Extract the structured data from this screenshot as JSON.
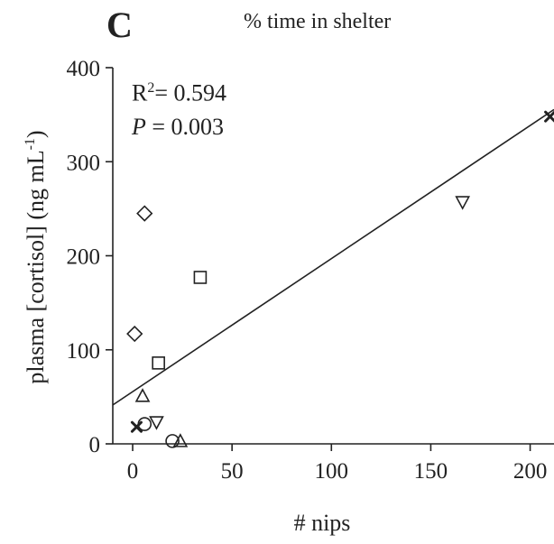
{
  "panel_label": "C",
  "chart_data": {
    "type": "scatter",
    "title": "% time in shelter",
    "xlabel": "# nips",
    "ylabel": "plasma [cortisol] (ng mL",
    "ylabel_superscript": "-1",
    "ylabel_tail": ")",
    "xlim": [
      -10,
      212
    ],
    "ylim": [
      0,
      400
    ],
    "xticks": [
      0,
      50,
      100,
      150,
      200
    ],
    "yticks": [
      0,
      100,
      200,
      300,
      400
    ],
    "grid": false,
    "stats": {
      "r2_prefix": "R",
      "r2_sup": "2",
      "r2_value": "= 0.594",
      "p_label": "P",
      "p_value": " = 0.003"
    },
    "regression": {
      "slope": 1.415,
      "intercept": 55.5
    },
    "points": [
      {
        "marker": "x",
        "x": 210,
        "y": 348
      },
      {
        "marker": "x",
        "x": 2,
        "y": 18
      },
      {
        "marker": "triangle-down",
        "x": 166,
        "y": 257
      },
      {
        "marker": "triangle-down",
        "x": 12,
        "y": 23
      },
      {
        "marker": "diamond",
        "x": 6,
        "y": 245
      },
      {
        "marker": "diamond",
        "x": 1,
        "y": 117
      },
      {
        "marker": "square",
        "x": 34,
        "y": 177
      },
      {
        "marker": "square",
        "x": 13,
        "y": 86
      },
      {
        "marker": "triangle-up",
        "x": 5,
        "y": 51
      },
      {
        "marker": "triangle-up",
        "x": 24,
        "y": 3
      },
      {
        "marker": "circle",
        "x": 6,
        "y": 21
      },
      {
        "marker": "circle",
        "x": 20,
        "y": 3
      }
    ]
  },
  "colors": {
    "ink": "#222222",
    "background": "#ffffff"
  }
}
